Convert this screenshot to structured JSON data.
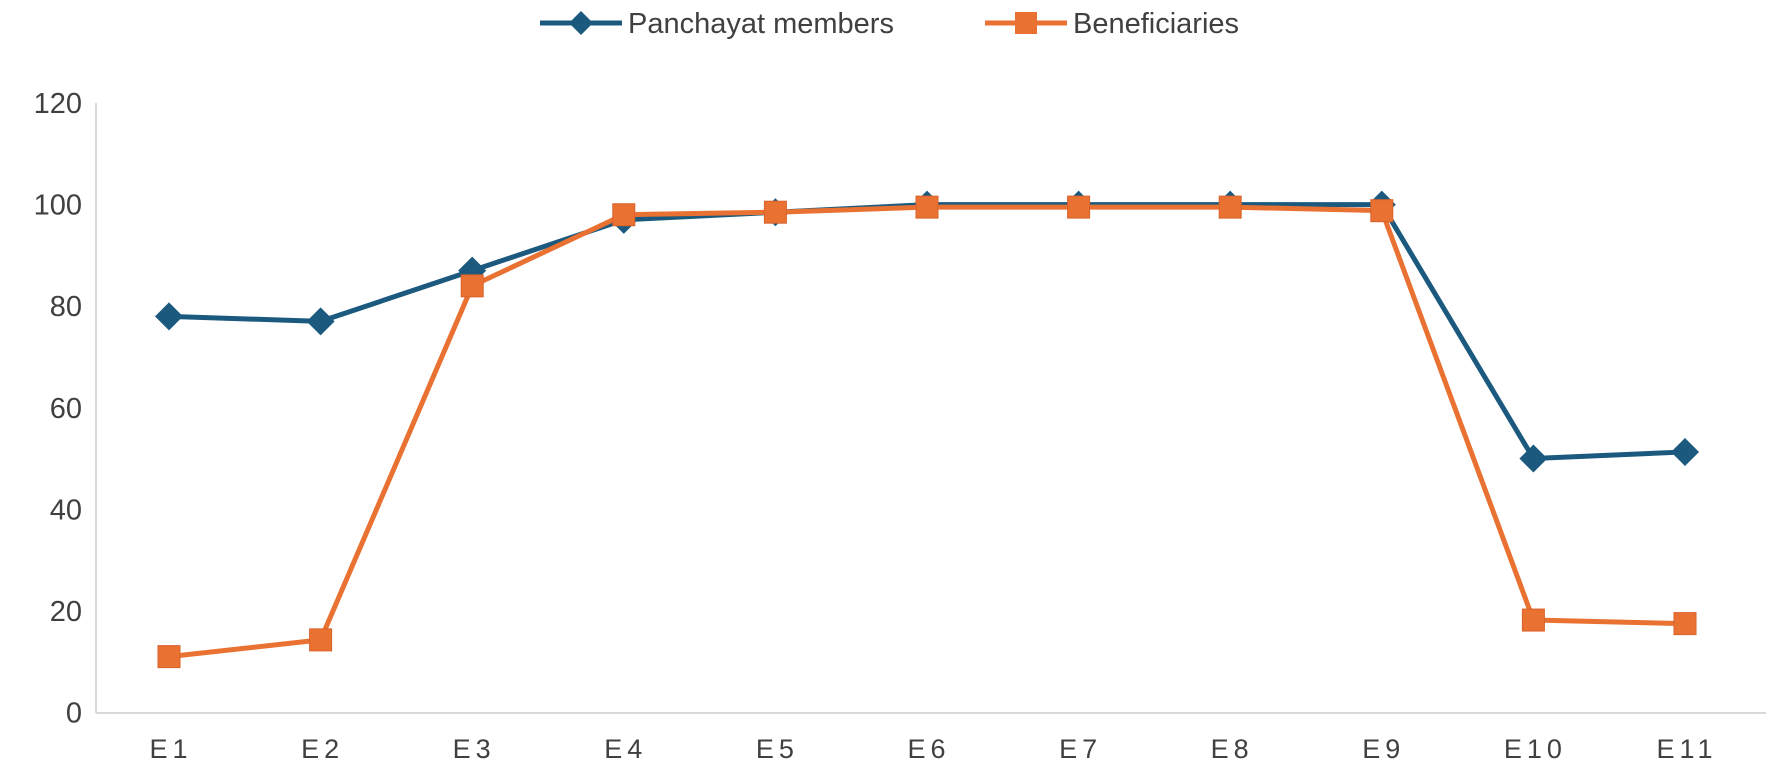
{
  "chart_data": {
    "type": "line",
    "title": "",
    "xlabel": "",
    "ylabel": "",
    "categories": [
      "E1",
      "E2",
      "E3",
      "E4",
      "E5",
      "E6",
      "E7",
      "E8",
      "E9",
      "E10",
      "E11"
    ],
    "series": [
      {
        "name": "Panchayat members",
        "color": "#1B5A7E",
        "marker": "diamond",
        "values": [
          78,
          77,
          87,
          97,
          98.5,
          100,
          100,
          100,
          100,
          50,
          51.3
        ]
      },
      {
        "name": "Beneficiaries",
        "color": "#E97132",
        "marker": "square",
        "values": [
          11,
          14.3,
          84,
          98,
          98.5,
          99.5,
          99.5,
          99.5,
          98.8,
          18.2,
          17.5
        ]
      }
    ],
    "ylim": [
      0,
      120
    ],
    "yticks": [
      "0",
      "20",
      "40",
      "60",
      "80",
      "100",
      "120"
    ],
    "grid": false,
    "legend_position": "top"
  },
  "legend": {
    "items": [
      {
        "label": "Panchayat members"
      },
      {
        "label": "Beneficiaries"
      }
    ]
  }
}
